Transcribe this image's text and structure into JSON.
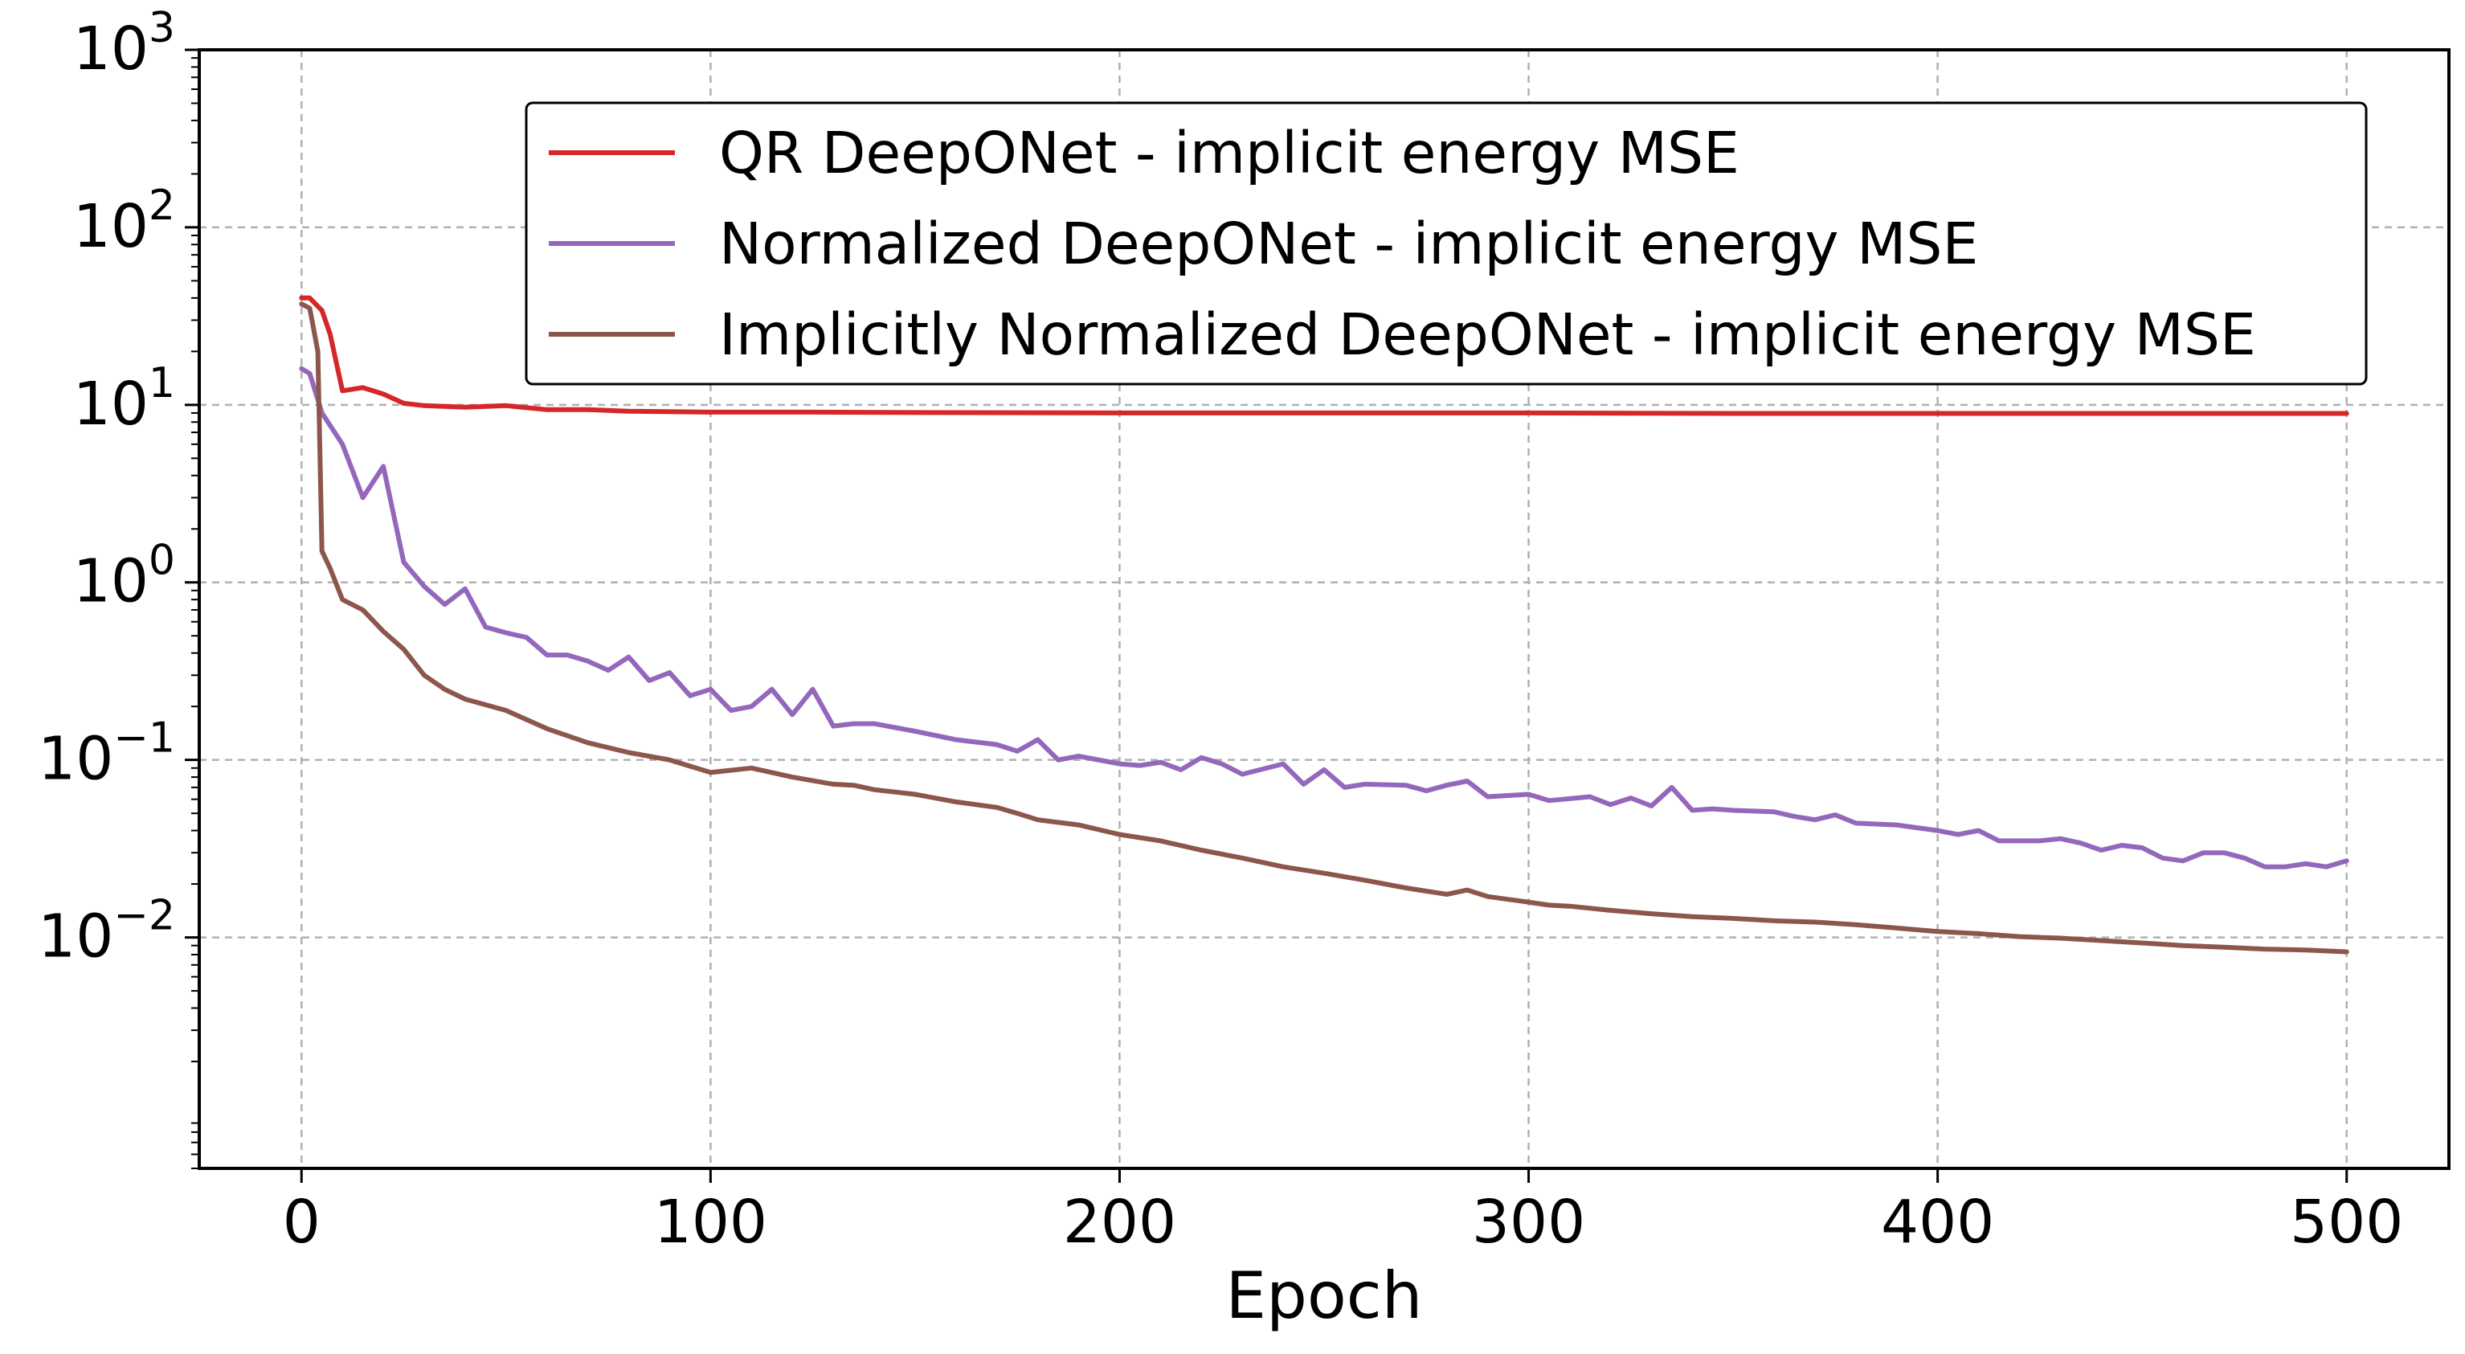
{
  "chart_data": {
    "type": "line",
    "title": "",
    "xlabel": "Epoch",
    "ylabel": "",
    "xlim": [
      -25,
      525
    ],
    "ylim": [
      0.0005,
      1000
    ],
    "yscale": "log",
    "grid": true,
    "legend_position": "top-right",
    "x_ticks": [
      0,
      100,
      200,
      300,
      400,
      500
    ],
    "x_tick_labels": [
      "0",
      "100",
      "200",
      "300",
      "400",
      "500"
    ],
    "y_ticks": [
      {
        "value": 1000,
        "base": "10",
        "exp": "3"
      },
      {
        "value": 100,
        "base": "10",
        "exp": "2"
      },
      {
        "value": 10,
        "base": "10",
        "exp": "1"
      },
      {
        "value": 1,
        "base": "10",
        "exp": "0"
      },
      {
        "value": 0.1,
        "base": "10",
        "exp": "−1"
      },
      {
        "value": 0.01,
        "base": "10",
        "exp": "−2"
      }
    ],
    "series": [
      {
        "name": "QR DeepONet - implicit energy MSE",
        "color": "#d62728",
        "x": [
          0,
          2,
          5,
          7,
          10,
          15,
          20,
          25,
          30,
          40,
          50,
          60,
          70,
          80,
          100,
          125,
          150,
          200,
          250,
          300,
          350,
          400,
          450,
          500
        ],
        "y": [
          40,
          40,
          34,
          25,
          12,
          12.5,
          11.5,
          10.2,
          9.9,
          9.7,
          9.9,
          9.4,
          9.4,
          9.2,
          9.1,
          9.1,
          9.05,
          9.0,
          9.0,
          9.0,
          8.95,
          8.95,
          8.95,
          8.95
        ]
      },
      {
        "name": "Normalized DeepONet - implicit energy MSE",
        "color": "#9467bd",
        "x": [
          0,
          2,
          5,
          10,
          15,
          20,
          25,
          30,
          35,
          40,
          45,
          50,
          55,
          60,
          65,
          70,
          75,
          80,
          85,
          90,
          95,
          100,
          105,
          110,
          115,
          120,
          125,
          130,
          135,
          140,
          150,
          160,
          170,
          175,
          180,
          185,
          190,
          200,
          205,
          210,
          215,
          220,
          225,
          230,
          240,
          245,
          250,
          255,
          260,
          270,
          275,
          280,
          285,
          290,
          300,
          305,
          315,
          320,
          325,
          330,
          335,
          340,
          345,
          350,
          360,
          365,
          370,
          375,
          380,
          390,
          400,
          405,
          410,
          415,
          425,
          430,
          435,
          440,
          445,
          450,
          455,
          460,
          465,
          470,
          475,
          480,
          485,
          490,
          495,
          500
        ],
        "y": [
          16,
          15,
          9,
          6,
          3,
          4.5,
          1.3,
          0.95,
          0.75,
          0.92,
          0.56,
          0.52,
          0.49,
          0.39,
          0.39,
          0.36,
          0.32,
          0.38,
          0.28,
          0.31,
          0.23,
          0.25,
          0.19,
          0.2,
          0.25,
          0.18,
          0.25,
          0.155,
          0.16,
          0.16,
          0.145,
          0.13,
          0.122,
          0.112,
          0.13,
          0.1,
          0.105,
          0.095,
          0.093,
          0.097,
          0.088,
          0.103,
          0.095,
          0.083,
          0.095,
          0.073,
          0.088,
          0.07,
          0.073,
          0.072,
          0.067,
          0.072,
          0.076,
          0.062,
          0.064,
          0.059,
          0.062,
          0.056,
          0.061,
          0.055,
          0.07,
          0.052,
          0.053,
          0.052,
          0.051,
          0.048,
          0.046,
          0.049,
          0.044,
          0.043,
          0.04,
          0.038,
          0.04,
          0.035,
          0.035,
          0.036,
          0.034,
          0.031,
          0.033,
          0.032,
          0.028,
          0.027,
          0.03,
          0.03,
          0.028,
          0.025,
          0.025,
          0.026,
          0.025,
          0.027
        ]
      },
      {
        "name": "Implicitly Normalized DeepONet - implicit energy MSE",
        "color": "#8c564b",
        "x": [
          0,
          2,
          4,
          5,
          7,
          10,
          15,
          20,
          25,
          30,
          35,
          40,
          50,
          60,
          70,
          80,
          90,
          100,
          110,
          120,
          130,
          135,
          140,
          150,
          160,
          170,
          175,
          180,
          190,
          200,
          210,
          220,
          230,
          240,
          250,
          260,
          270,
          280,
          285,
          290,
          300,
          305,
          310,
          320,
          330,
          340,
          350,
          360,
          370,
          380,
          390,
          400,
          410,
          420,
          430,
          440,
          450,
          460,
          470,
          480,
          490,
          500
        ],
        "y": [
          37,
          35,
          20,
          1.5,
          1.2,
          0.8,
          0.7,
          0.53,
          0.42,
          0.3,
          0.25,
          0.22,
          0.19,
          0.15,
          0.125,
          0.11,
          0.1,
          0.085,
          0.09,
          0.08,
          0.073,
          0.072,
          0.068,
          0.064,
          0.058,
          0.054,
          0.05,
          0.046,
          0.043,
          0.038,
          0.035,
          0.031,
          0.028,
          0.025,
          0.023,
          0.021,
          0.019,
          0.0175,
          0.0185,
          0.017,
          0.0158,
          0.0152,
          0.015,
          0.0142,
          0.0136,
          0.0131,
          0.0128,
          0.0124,
          0.0122,
          0.0118,
          0.0113,
          0.0108,
          0.0105,
          0.0101,
          0.0099,
          0.0096,
          0.0093,
          0.009,
          0.0088,
          0.0086,
          0.0085,
          0.0083
        ]
      }
    ]
  }
}
